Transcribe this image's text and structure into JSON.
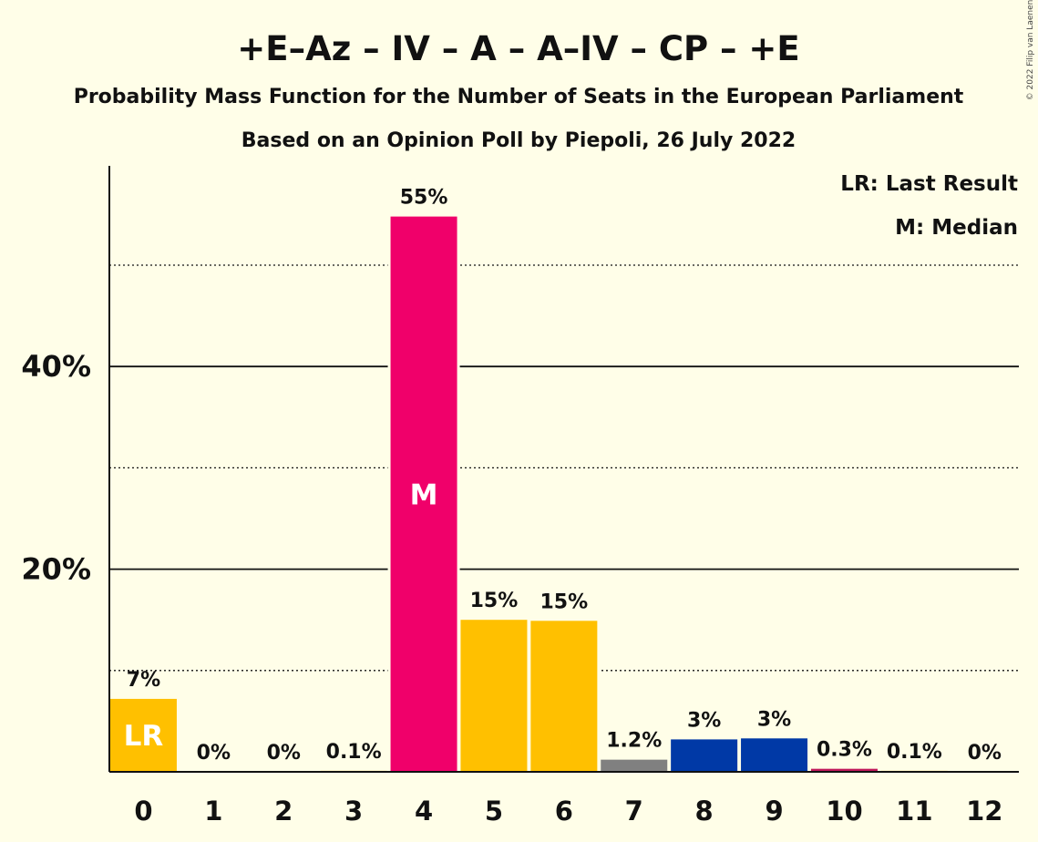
{
  "chart_data": {
    "type": "bar",
    "title": "+E–Az – IV – A – A–IV – CP – +E",
    "subtitle": "Probability Mass Function for the Number of Seats in the European Parliament",
    "subtitle2": "Based on an Opinion Poll by Piepoli, 26 July 2022",
    "copyright": "© 2022 Filip van Laenen",
    "legend": [
      "LR: Last Result",
      "M: Median"
    ],
    "legend_position": "top-right",
    "categories": [
      "0",
      "1",
      "2",
      "3",
      "4",
      "5",
      "6",
      "7",
      "8",
      "9",
      "10",
      "11",
      "12"
    ],
    "values": [
      7.2,
      0,
      0,
      0.1,
      54.8,
      15.0,
      14.9,
      1.2,
      3.2,
      3.3,
      0.3,
      0.1,
      0
    ],
    "data_labels": [
      "7%",
      "0%",
      "0%",
      "0.1%",
      "55%",
      "15%",
      "15%",
      "1.2%",
      "3%",
      "3%",
      "0.3%",
      "0.1%",
      "0%"
    ],
    "bar_colors": [
      "#FFC000",
      "#FFC000",
      "#FFC000",
      "#FFC000",
      "#F0006A",
      "#FFC000",
      "#FFC000",
      "#808080",
      "#0039A6",
      "#0039A6",
      "#C0185A",
      "#FFC000",
      "#FFC000"
    ],
    "last_result_index": 0,
    "last_result_label": "LR",
    "median_index": 4,
    "median_label": "M",
    "ylim": [
      0,
      60
    ],
    "yticks": [
      20,
      40
    ],
    "ytick_labels": [
      "20%",
      "40%"
    ],
    "minor_gridlines": [
      10,
      30,
      50
    ],
    "major_gridlines": [
      20,
      40
    ],
    "grid": true,
    "xlabel": "",
    "ylabel": ""
  }
}
